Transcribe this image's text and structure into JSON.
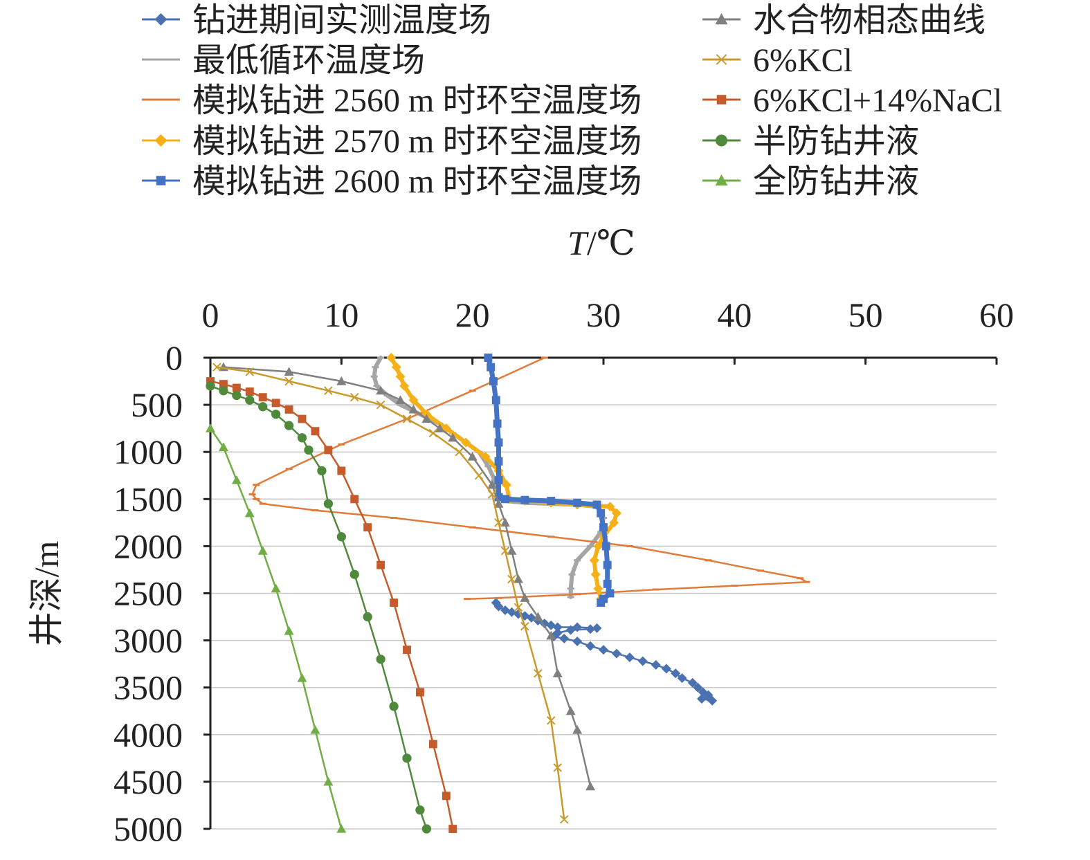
{
  "chart_data": {
    "type": "line",
    "orientation": "depth-down",
    "xlabel": "T/℃",
    "xlabel_var": "T",
    "xlabel_unit": "/℃",
    "ylabel": "井深/m",
    "xlim": [
      0,
      60
    ],
    "ylim": [
      0,
      5000
    ],
    "y_reversed": true,
    "x_axis_position": "top",
    "x_ticks": [
      0,
      10,
      20,
      30,
      40,
      50,
      60
    ],
    "y_ticks": [
      0,
      500,
      1000,
      1500,
      2000,
      2500,
      3000,
      3500,
      4000,
      4500,
      5000
    ],
    "grid": "horizontal",
    "legend_position": "top, two columns",
    "series": [
      {
        "name": "钻进期间实测温度场",
        "color": "#4a72b0",
        "marker": "diamond",
        "points": [
          [
            21.8,
            2600
          ],
          [
            22,
            2640
          ],
          [
            22.5,
            2680
          ],
          [
            23,
            2700
          ],
          [
            23.5,
            2720
          ],
          [
            24,
            2740
          ],
          [
            24.5,
            2760
          ],
          [
            25,
            2790
          ],
          [
            25.5,
            2820
          ],
          [
            26,
            2840
          ],
          [
            26.5,
            2860
          ],
          [
            28,
            2860
          ],
          [
            29.5,
            2870
          ],
          [
            29,
            2880
          ],
          [
            27.5,
            2890
          ],
          [
            26.5,
            2920
          ],
          [
            26.2,
            2960
          ],
          [
            27,
            2980
          ],
          [
            28,
            3010
          ],
          [
            29,
            3060
          ],
          [
            30,
            3100
          ],
          [
            31,
            3140
          ],
          [
            32,
            3180
          ],
          [
            33,
            3220
          ],
          [
            34,
            3260
          ],
          [
            34.8,
            3300
          ],
          [
            35.5,
            3350
          ],
          [
            36,
            3400
          ],
          [
            36.8,
            3450
          ],
          [
            37.2,
            3500
          ],
          [
            37.6,
            3550
          ],
          [
            38,
            3600
          ],
          [
            38.3,
            3640
          ],
          [
            37.5,
            3620
          ],
          [
            38,
            3580
          ]
        ]
      },
      {
        "name": "最低循环温度场",
        "color": "#a5a5a5",
        "marker": "dash",
        "points": [
          [
            13,
            0
          ],
          [
            12.6,
            100
          ],
          [
            12.5,
            200
          ],
          [
            12.7,
            300
          ],
          [
            13.5,
            400
          ],
          [
            14.5,
            500
          ],
          [
            16,
            600
          ],
          [
            17.5,
            700
          ],
          [
            18.5,
            800
          ],
          [
            19.5,
            900
          ],
          [
            20.5,
            1000
          ],
          [
            21.2,
            1150
          ],
          [
            21.7,
            1300
          ],
          [
            22,
            1450
          ],
          [
            22.5,
            1520
          ],
          [
            24,
            1540
          ],
          [
            26,
            1550
          ],
          [
            28,
            1560
          ],
          [
            29.5,
            1580
          ],
          [
            30,
            1700
          ],
          [
            29.8,
            1850
          ],
          [
            29,
            2000
          ],
          [
            28,
            2150
          ],
          [
            27.6,
            2300
          ],
          [
            27.5,
            2450
          ],
          [
            27.5,
            2540
          ]
        ]
      },
      {
        "name": "模拟钻进 2560 m 时环空温度场",
        "color": "#e07b39",
        "marker": "dash",
        "points": [
          [
            25.5,
            0
          ],
          [
            20,
            350
          ],
          [
            15,
            650
          ],
          [
            10,
            920
          ],
          [
            6,
            1180
          ],
          [
            3.5,
            1350
          ],
          [
            3.2,
            1450
          ],
          [
            3.5,
            1500
          ],
          [
            4,
            1550
          ],
          [
            8,
            1620
          ],
          [
            14,
            1700
          ],
          [
            20,
            1800
          ],
          [
            26,
            1900
          ],
          [
            32,
            2000
          ],
          [
            38,
            2150
          ],
          [
            42,
            2260
          ],
          [
            45,
            2340
          ],
          [
            45.5,
            2380
          ],
          [
            40,
            2420
          ],
          [
            34,
            2460
          ],
          [
            28,
            2510
          ],
          [
            22,
            2550
          ],
          [
            19.6,
            2560
          ]
        ]
      },
      {
        "name": "模拟钻进 2570 m 时环空温度场",
        "color": "#f5b018",
        "marker": "diamond",
        "points": [
          [
            13.8,
            0
          ],
          [
            14.2,
            100
          ],
          [
            14.5,
            200
          ],
          [
            14.8,
            300
          ],
          [
            15.5,
            450
          ],
          [
            16.5,
            600
          ],
          [
            18,
            750
          ],
          [
            19.5,
            900
          ],
          [
            21,
            1050
          ],
          [
            22,
            1200
          ],
          [
            22.6,
            1350
          ],
          [
            22.8,
            1500
          ],
          [
            24,
            1520
          ],
          [
            26,
            1540
          ],
          [
            28,
            1560
          ],
          [
            30.5,
            1580
          ],
          [
            31,
            1650
          ],
          [
            30.8,
            1750
          ],
          [
            30,
            1900
          ],
          [
            29.6,
            2000
          ],
          [
            29.3,
            2150
          ],
          [
            29.4,
            2300
          ],
          [
            29.6,
            2450
          ],
          [
            29.8,
            2560
          ]
        ]
      },
      {
        "name": "模拟钻进 2600 m 时环空温度场",
        "color": "#4472c4",
        "marker": "square",
        "points": [
          [
            21.2,
            0
          ],
          [
            21.4,
            100
          ],
          [
            21.6,
            250
          ],
          [
            21.8,
            450
          ],
          [
            21.9,
            700
          ],
          [
            22,
            900
          ],
          [
            22,
            1100
          ],
          [
            22,
            1300
          ],
          [
            22,
            1480
          ],
          [
            22.5,
            1500
          ],
          [
            24,
            1510
          ],
          [
            26,
            1520
          ],
          [
            28,
            1540
          ],
          [
            29.5,
            1560
          ],
          [
            29.8,
            1650
          ],
          [
            30,
            1800
          ],
          [
            30.2,
            2000
          ],
          [
            30.3,
            2200
          ],
          [
            30.3,
            2400
          ],
          [
            30.5,
            2500
          ],
          [
            30,
            2560
          ],
          [
            29.8,
            2600
          ]
        ]
      },
      {
        "name": "水合物相态曲线",
        "color": "#7f7f7f",
        "marker": "triangle",
        "line": true,
        "points": [
          [
            1,
            100
          ],
          [
            6,
            150
          ],
          [
            10,
            250
          ],
          [
            13,
            350
          ],
          [
            14.5,
            450
          ],
          [
            15.5,
            550
          ],
          [
            16.5,
            650
          ],
          [
            17.5,
            750
          ],
          [
            18.5,
            850
          ],
          [
            20,
            1050
          ],
          [
            21.5,
            1350
          ],
          [
            22,
            1550
          ],
          [
            22.5,
            1750
          ],
          [
            23,
            2050
          ],
          [
            23.5,
            2350
          ],
          [
            24,
            2550
          ],
          [
            25,
            2750
          ],
          [
            26,
            2950
          ],
          [
            26.5,
            3350
          ],
          [
            27.5,
            3750
          ],
          [
            28,
            3950
          ],
          [
            29,
            4550
          ]
        ]
      },
      {
        "name": "6%KCl",
        "color": "#c89a2e",
        "marker": "x",
        "points": [
          [
            0.5,
            100
          ],
          [
            3,
            150
          ],
          [
            6,
            250
          ],
          [
            9,
            350
          ],
          [
            11,
            420
          ],
          [
            13,
            500
          ],
          [
            15,
            650
          ],
          [
            17,
            800
          ],
          [
            19,
            1000
          ],
          [
            20.5,
            1250
          ],
          [
            21.5,
            1450
          ],
          [
            22,
            1750
          ],
          [
            22.5,
            2050
          ],
          [
            23,
            2350
          ],
          [
            23.5,
            2650
          ],
          [
            24,
            2850
          ],
          [
            25,
            3350
          ],
          [
            26,
            3850
          ],
          [
            26.5,
            4350
          ],
          [
            27,
            4900
          ]
        ]
      },
      {
        "name": "6%KCl+14%NaCl",
        "color": "#c55a2a",
        "marker": "square",
        "points": [
          [
            0,
            250
          ],
          [
            1,
            280
          ],
          [
            2,
            320
          ],
          [
            3,
            360
          ],
          [
            4,
            420
          ],
          [
            5,
            480
          ],
          [
            6,
            550
          ],
          [
            7,
            650
          ],
          [
            8,
            780
          ],
          [
            9,
            980
          ],
          [
            10,
            1200
          ],
          [
            11,
            1500
          ],
          [
            12,
            1800
          ],
          [
            13,
            2200
          ],
          [
            14,
            2600
          ],
          [
            15,
            3100
          ],
          [
            16,
            3550
          ],
          [
            17,
            4100
          ],
          [
            18,
            4650
          ],
          [
            18.5,
            5000
          ]
        ]
      },
      {
        "name": "半防钻井液",
        "color": "#4f8a3c",
        "marker": "circle",
        "points": [
          [
            0,
            300
          ],
          [
            1,
            350
          ],
          [
            2,
            400
          ],
          [
            3,
            450
          ],
          [
            4,
            520
          ],
          [
            5,
            600
          ],
          [
            6,
            720
          ],
          [
            7,
            850
          ],
          [
            7.5,
            980
          ],
          [
            8.5,
            1200
          ],
          [
            9,
            1550
          ],
          [
            10,
            1900
          ],
          [
            11,
            2300
          ],
          [
            12,
            2750
          ],
          [
            13,
            3200
          ],
          [
            14,
            3700
          ],
          [
            15,
            4250
          ],
          [
            16,
            4800
          ],
          [
            16.5,
            5000
          ]
        ]
      },
      {
        "name": "全防钻井液",
        "color": "#70ad47",
        "marker": "triangle",
        "points": [
          [
            0,
            750
          ],
          [
            1,
            950
          ],
          [
            2,
            1300
          ],
          [
            3,
            1650
          ],
          [
            4,
            2050
          ],
          [
            5,
            2450
          ],
          [
            6,
            2900
          ],
          [
            7,
            3400
          ],
          [
            8,
            3950
          ],
          [
            9,
            4500
          ],
          [
            10,
            5000
          ]
        ]
      }
    ]
  }
}
